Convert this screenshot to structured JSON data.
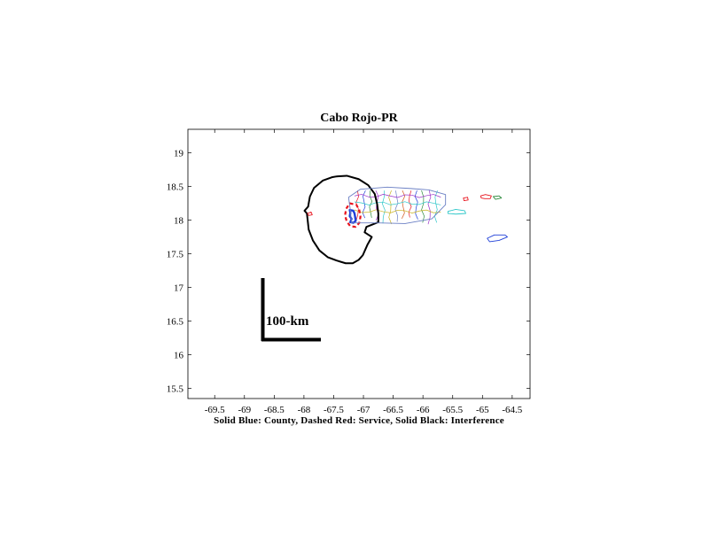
{
  "chart_data": {
    "type": "map",
    "title": "Cabo Rojo-PR",
    "xlabel": "Solid Blue: County, Dashed Red: Service, Solid Black: Interference",
    "ylabel": "",
    "xlim": [
      -69.95,
      -64.2
    ],
    "ylim": [
      15.35,
      19.35
    ],
    "xticks": [
      -69.5,
      -69,
      -68.5,
      -68,
      -67.5,
      -67,
      -66.5,
      -66,
      -65.5,
      -65,
      -64.5
    ],
    "yticks": [
      15.5,
      16,
      16.5,
      17,
      17.5,
      18,
      18.5,
      19
    ],
    "grid": false,
    "scale_bar": {
      "label": "100-km",
      "length_km": 100
    },
    "series": [
      {
        "name": "County",
        "style": "solid",
        "color": "#1f3fd8",
        "points": [
          [
            -67.23,
            18.15
          ],
          [
            -67.17,
            18.14
          ],
          [
            -67.15,
            18.1
          ],
          [
            -67.14,
            18.05
          ],
          [
            -67.13,
            17.99
          ],
          [
            -67.17,
            17.96
          ],
          [
            -67.22,
            17.97
          ],
          [
            -67.2,
            18.02
          ],
          [
            -67.23,
            18.06
          ],
          [
            -67.22,
            18.11
          ]
        ]
      },
      {
        "name": "Service",
        "style": "dashed",
        "color": "#e8141e",
        "points": [
          [
            -67.23,
            18.25
          ],
          [
            -67.12,
            18.23
          ],
          [
            -67.07,
            18.15
          ],
          [
            -67.05,
            18.05
          ],
          [
            -67.07,
            17.96
          ],
          [
            -67.13,
            17.9
          ],
          [
            -67.22,
            17.91
          ],
          [
            -67.28,
            17.98
          ],
          [
            -67.31,
            18.07
          ],
          [
            -67.29,
            18.17
          ]
        ]
      },
      {
        "name": "Interference",
        "style": "solid",
        "color": "#000000",
        "points": [
          [
            -67.45,
            18.65
          ],
          [
            -67.28,
            18.66
          ],
          [
            -67.08,
            18.61
          ],
          [
            -66.92,
            18.52
          ],
          [
            -66.81,
            18.39
          ],
          [
            -66.77,
            18.24
          ],
          [
            -66.75,
            18.1
          ],
          [
            -66.75,
            17.97
          ],
          [
            -66.95,
            17.9
          ],
          [
            -66.98,
            17.82
          ],
          [
            -66.86,
            17.75
          ],
          [
            -66.93,
            17.64
          ],
          [
            -67.01,
            17.48
          ],
          [
            -67.08,
            17.41
          ],
          [
            -67.18,
            17.36
          ],
          [
            -67.3,
            17.36
          ],
          [
            -67.45,
            17.4
          ],
          [
            -67.6,
            17.45
          ],
          [
            -67.74,
            17.55
          ],
          [
            -67.85,
            17.7
          ],
          [
            -67.92,
            17.86
          ],
          [
            -67.95,
            18.1
          ],
          [
            -67.99,
            18.14
          ],
          [
            -67.93,
            18.2
          ],
          [
            -67.9,
            18.35
          ],
          [
            -67.83,
            18.48
          ],
          [
            -67.68,
            18.59
          ],
          [
            -67.52,
            18.64
          ]
        ]
      },
      {
        "name": "Puerto Rico outline",
        "style": "solid",
        "color": "#6a7fc4",
        "points": [
          [
            -67.25,
            18.34
          ],
          [
            -67.05,
            18.46
          ],
          [
            -66.6,
            18.49
          ],
          [
            -66.2,
            18.47
          ],
          [
            -65.9,
            18.45
          ],
          [
            -65.62,
            18.38
          ],
          [
            -65.62,
            18.23
          ],
          [
            -65.85,
            18.02
          ],
          [
            -66.3,
            17.95
          ],
          [
            -66.75,
            17.96
          ],
          [
            -67.2,
            17.96
          ],
          [
            -67.22,
            18.15
          ]
        ]
      },
      {
        "name": "Vieques",
        "style": "solid",
        "color": "#2ec7c9",
        "points": [
          [
            -65.58,
            18.13
          ],
          [
            -65.45,
            18.16
          ],
          [
            -65.3,
            18.14
          ],
          [
            -65.28,
            18.1
          ],
          [
            -65.45,
            18.09
          ],
          [
            -65.58,
            18.1
          ]
        ]
      },
      {
        "name": "Culebra",
        "style": "solid",
        "color": "#e8141e",
        "points": [
          [
            -65.32,
            18.33
          ],
          [
            -65.25,
            18.34
          ],
          [
            -65.24,
            18.3
          ],
          [
            -65.31,
            18.29
          ]
        ]
      },
      {
        "name": "St. Thomas",
        "style": "solid",
        "color": "#e8141e",
        "points": [
          [
            -65.03,
            18.36
          ],
          [
            -64.95,
            18.38
          ],
          [
            -64.85,
            18.36
          ],
          [
            -64.87,
            18.32
          ],
          [
            -64.96,
            18.32
          ],
          [
            -65.02,
            18.33
          ]
        ]
      },
      {
        "name": "St. John",
        "style": "solid",
        "color": "#2e8b3e",
        "points": [
          [
            -64.82,
            18.35
          ],
          [
            -64.72,
            18.36
          ],
          [
            -64.68,
            18.33
          ],
          [
            -64.78,
            18.31
          ]
        ]
      },
      {
        "name": "St. Croix",
        "style": "solid",
        "color": "#1f3fd8",
        "points": [
          [
            -64.92,
            17.73
          ],
          [
            -64.8,
            17.78
          ],
          [
            -64.62,
            17.78
          ],
          [
            -64.58,
            17.75
          ],
          [
            -64.72,
            17.7
          ],
          [
            -64.88,
            17.68
          ]
        ]
      },
      {
        "name": "Mona",
        "style": "solid",
        "color": "#e8141e",
        "points": [
          [
            -67.94,
            18.1
          ],
          [
            -67.88,
            18.12
          ],
          [
            -67.86,
            18.08
          ],
          [
            -67.92,
            18.07
          ]
        ]
      }
    ]
  }
}
